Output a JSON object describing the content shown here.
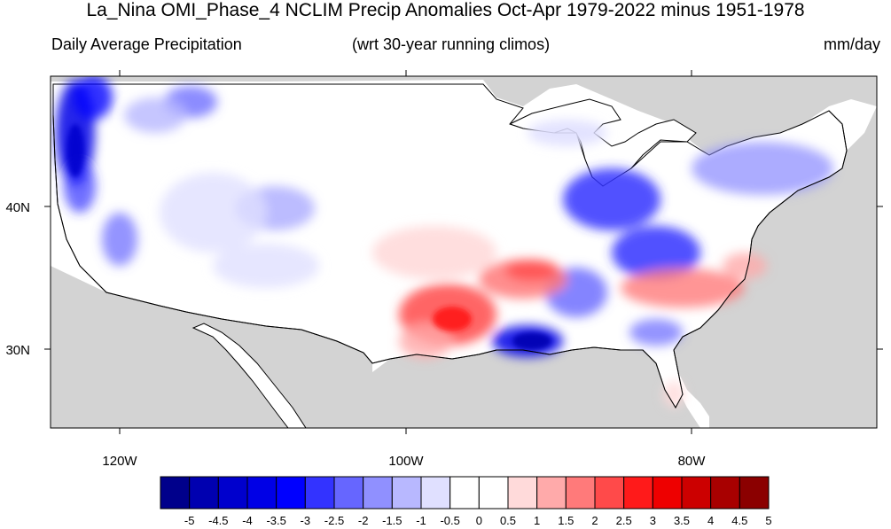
{
  "figure": {
    "title": "La_Nina OMI_Phase_4 NCLIM Precip Anomalies Oct-Apr 1979-2022 minus 1951-1978",
    "left_string": "Daily Average Precipitation",
    "center_string": "(wrt 30-year running climos)",
    "right_string": "mm/day"
  },
  "map": {
    "lon_ticks": [
      "120W",
      "100W",
      "80W"
    ],
    "lat_ticks": [
      "40N",
      "30N"
    ],
    "land_mask_color": "#d3d3d3",
    "coastline_color": "#000000"
  },
  "colorbar": {
    "labels": [
      "-5",
      "-4.5",
      "-4",
      "-3.5",
      "-3",
      "-2.5",
      "-2",
      "-1.5",
      "-1",
      "-0.5",
      "0",
      "0.5",
      "1",
      "1.5",
      "2",
      "2.5",
      "3",
      "3.5",
      "4",
      "4.5",
      "5"
    ],
    "colors": [
      "#00008b",
      "#0000b0",
      "#0000cd",
      "#0000e6",
      "#0000ff",
      "#3333ff",
      "#6666ff",
      "#9090ff",
      "#b8b8ff",
      "#e0e0ff",
      "#ffffff",
      "#ffffff",
      "#ffdada",
      "#ffaaaa",
      "#ff7a7a",
      "#ff4a4a",
      "#ff1a1a",
      "#ee0000",
      "#cc0000",
      "#a80000",
      "#8b0000"
    ]
  }
}
